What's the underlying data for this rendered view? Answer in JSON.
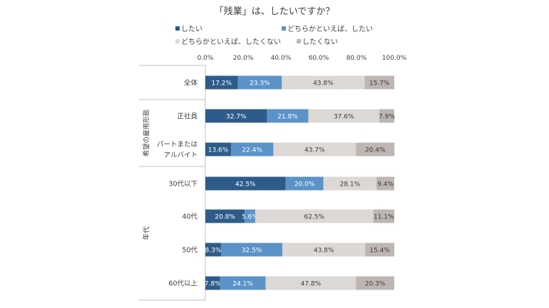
{
  "chart_data": {
    "type": "bar",
    "orientation": "horizontal",
    "stacked": "percent",
    "title": "「残業」は、したいですか？",
    "legend_placement": "top",
    "xlim": [
      0,
      100
    ],
    "x_ticks": [
      "0.0%",
      "20.0%",
      "40.0%",
      "60.0%",
      "80.0%",
      "100.0%"
    ],
    "grid": false,
    "groups": [
      {
        "label": "",
        "categories": [
          "全体"
        ]
      },
      {
        "label": "希望の雇用形態",
        "categories": [
          "正社員",
          "パートまたはアルバイト"
        ]
      },
      {
        "label": "年代",
        "categories": [
          "30代以下",
          "40代",
          "50代",
          "60代以上"
        ]
      }
    ],
    "categories": [
      "全体",
      "正社員",
      "パートまたはアルバイト",
      "30代以下",
      "40代",
      "50代",
      "60代以上"
    ],
    "category_lines": [
      [
        "全体"
      ],
      [
        "正社員"
      ],
      [
        "パートまたは",
        "アルバイト"
      ],
      [
        "30代以下"
      ],
      [
        "40代"
      ],
      [
        "50代"
      ],
      [
        "60代以上"
      ]
    ],
    "series": [
      {
        "name": "したい",
        "color": "#2e5c8a",
        "text_color": "#ffffff",
        "values": [
          17.2,
          32.7,
          13.6,
          42.5,
          20.8,
          8.3,
          7.8
        ]
      },
      {
        "name": "どちらかといえば、したい",
        "color": "#5b93c8",
        "text_color": "#ffffff",
        "values": [
          23.3,
          21.8,
          22.4,
          20.0,
          5.6,
          32.5,
          24.1
        ]
      },
      {
        "name": "どちらかといえば、したくない",
        "color": "#dcd8d6",
        "text_color": "#404040",
        "values": [
          43.8,
          37.6,
          43.7,
          28.1,
          62.5,
          43.8,
          47.8
        ]
      },
      {
        "name": "したくない",
        "color": "#bdb6b3",
        "text_color": "#404040",
        "values": [
          15.7,
          7.9,
          20.4,
          9.4,
          11.1,
          15.4,
          20.3
        ]
      }
    ]
  }
}
